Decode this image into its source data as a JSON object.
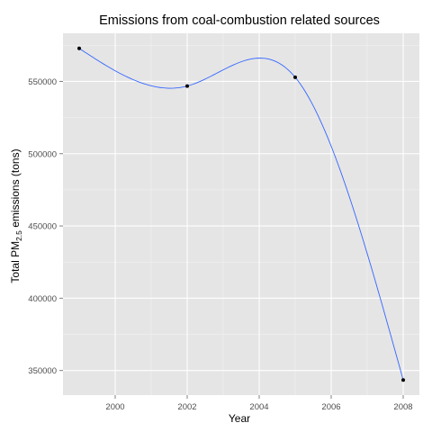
{
  "chart_data": {
    "type": "line",
    "title": "Emissions from coal-combustion related sources",
    "xlabel": "Year",
    "ylabel": {
      "prefix": "Total PM",
      "subscript": "2.5",
      "suffix": " emissions (tons)"
    },
    "x": [
      1999,
      2002,
      2005,
      2008
    ],
    "series": [
      {
        "values": [
          572833,
          546789,
          552881,
          343432
        ]
      }
    ],
    "xlim": [
      1998.55,
      2008.45
    ],
    "ylim": [
      332979,
      583286
    ],
    "xticks": [
      2000,
      2002,
      2004,
      2006,
      2008
    ],
    "xtick_labels": [
      "2000",
      "2002",
      "2004",
      "2006",
      "2008"
    ],
    "yticks": [
      350000,
      400000,
      450000,
      500000,
      550000
    ],
    "ytick_labels": [
      "350000",
      "400000",
      "450000",
      "500000",
      "550000"
    ],
    "grid": true,
    "smooth": true,
    "colors": {
      "panel_background": "#e5e5e5",
      "grid_major": "#ffffff",
      "grid_minor": "#f2f2f2",
      "line": "#3366ff",
      "point": "#000000"
    }
  }
}
